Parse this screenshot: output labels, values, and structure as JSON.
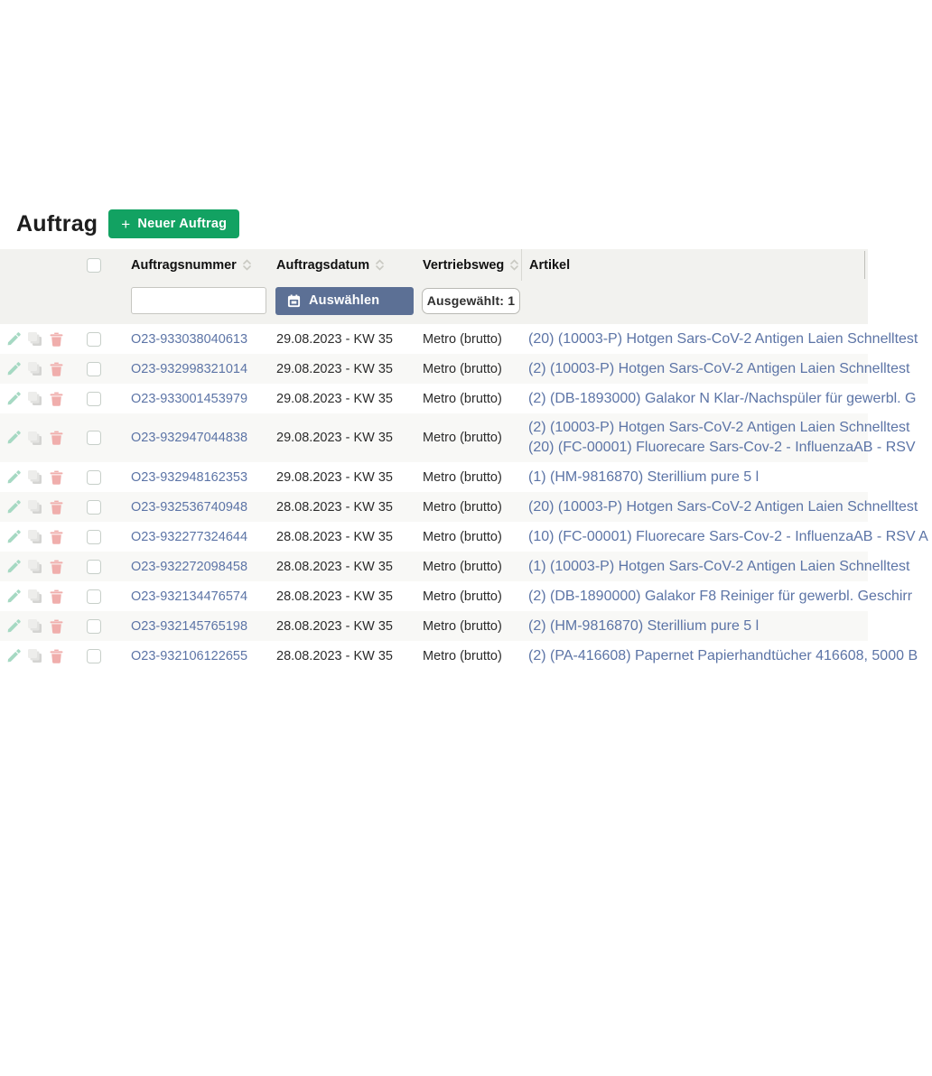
{
  "page": {
    "title": "Auftrag"
  },
  "toolbar": {
    "plus": "+",
    "new_order_label": "Neuer Auftrag"
  },
  "colors": {
    "accent_green": "#12A262",
    "accent_slate": "#5C7095",
    "link_blue": "#5C74A6",
    "band_gray": "#F2F2EF",
    "stripe_gray": "#F8F8F6",
    "icon_edit": "#A6D9C3",
    "icon_copy": "#DEDEDC",
    "icon_delete": "#F0AEAC"
  },
  "table": {
    "columns": [
      {
        "key": "auftragsnummer",
        "label": "Auftragsnummer",
        "sortable": true
      },
      {
        "key": "auftragsdatum",
        "label": "Auftragsdatum",
        "sortable": true
      },
      {
        "key": "vertriebsweg",
        "label": "Vertriebsweg",
        "sortable": true
      },
      {
        "key": "artikel",
        "label": "Artikel",
        "sortable": false
      }
    ],
    "filters": {
      "auftragsnummer_value": "",
      "date_button_label": "Auswählen",
      "selected_label": "Ausgewählt: 1"
    },
    "rows": [
      {
        "order_number": "O23-933038040613",
        "order_date": "29.08.2023 - KW 35",
        "channel": "Metro (brutto)",
        "articles": [
          "(20) (10003-P) Hotgen Sars-CoV-2 Antigen Laien Schnelltest"
        ]
      },
      {
        "order_number": "O23-932998321014",
        "order_date": "29.08.2023 - KW 35",
        "channel": "Metro (brutto)",
        "articles": [
          "(2) (10003-P) Hotgen Sars-CoV-2 Antigen Laien Schnelltest"
        ]
      },
      {
        "order_number": "O23-933001453979",
        "order_date": "29.08.2023 - KW 35",
        "channel": "Metro (brutto)",
        "articles": [
          "(2) (DB-1893000) Galakor N Klar-/Nachspüler für gewerbl. G"
        ]
      },
      {
        "order_number": "O23-932947044838",
        "order_date": "29.08.2023 - KW 35",
        "channel": "Metro (brutto)",
        "articles": [
          "(2) (10003-P) Hotgen Sars-CoV-2 Antigen Laien Schnelltest",
          "(20) (FC-00001) Fluorecare Sars-Cov-2 - InfluenzaAB - RSV"
        ]
      },
      {
        "order_number": "O23-932948162353",
        "order_date": "29.08.2023 - KW 35",
        "channel": "Metro (brutto)",
        "articles": [
          "(1) (HM-9816870) Sterillium pure 5 l"
        ]
      },
      {
        "order_number": "O23-932536740948",
        "order_date": "28.08.2023 - KW 35",
        "channel": "Metro (brutto)",
        "articles": [
          "(20) (10003-P) Hotgen Sars-CoV-2 Antigen Laien Schnelltest"
        ]
      },
      {
        "order_number": "O23-932277324644",
        "order_date": "28.08.2023 - KW 35",
        "channel": "Metro (brutto)",
        "articles": [
          "(10) (FC-00001) Fluorecare Sars-Cov-2 - InfluenzaAB - RSV A"
        ]
      },
      {
        "order_number": "O23-932272098458",
        "order_date": "28.08.2023 - KW 35",
        "channel": "Metro (brutto)",
        "articles": [
          "(1) (10003-P) Hotgen Sars-CoV-2 Antigen Laien Schnelltest"
        ]
      },
      {
        "order_number": "O23-932134476574",
        "order_date": "28.08.2023 - KW 35",
        "channel": "Metro (brutto)",
        "articles": [
          "(2) (DB-1890000) Galakor F8 Reiniger für gewerbl. Geschirr"
        ]
      },
      {
        "order_number": "O23-932145765198",
        "order_date": "28.08.2023 - KW 35",
        "channel": "Metro (brutto)",
        "articles": [
          "(2) (HM-9816870) Sterillium pure 5 l"
        ]
      },
      {
        "order_number": "O23-932106122655",
        "order_date": "28.08.2023 - KW 35",
        "channel": "Metro (brutto)",
        "articles": [
          "(2) (PA-416608) Papernet Papierhandtücher 416608, 5000 B"
        ]
      }
    ]
  }
}
